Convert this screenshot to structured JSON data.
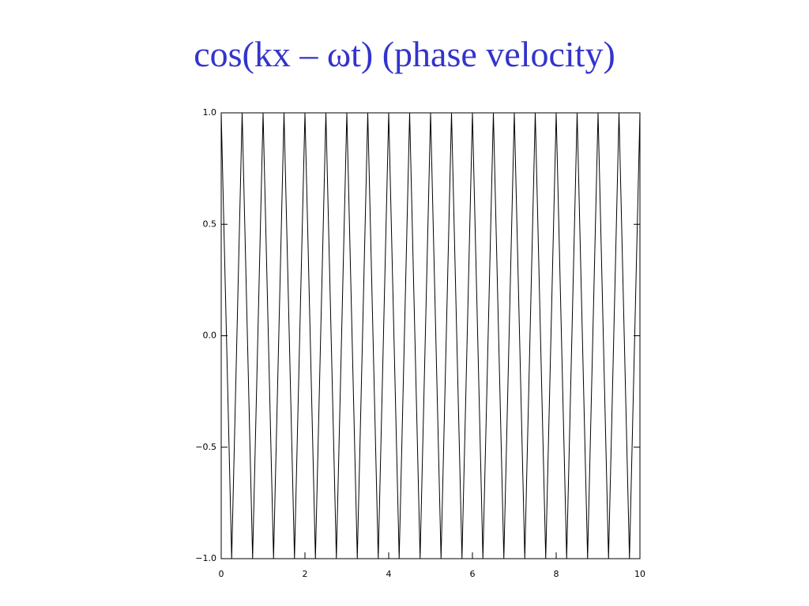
{
  "chart_data": {
    "type": "line",
    "title": "cos(kx – ωt) (phase velocity)",
    "color": "#000000",
    "x": [
      0,
      0.125,
      0.25,
      0.375,
      0.5,
      0.625,
      0.75,
      0.875,
      1,
      1.125,
      1.25,
      1.375,
      1.5,
      1.625,
      1.75,
      1.875,
      2,
      2.125,
      2.25,
      2.375,
      2.5,
      2.625,
      2.75,
      2.875,
      3,
      3.125,
      3.25,
      3.375,
      3.5,
      3.625,
      3.75,
      3.875,
      4,
      4.125,
      4.25,
      4.375,
      4.5,
      4.625,
      4.75,
      4.875,
      5,
      5.125,
      5.25,
      5.375,
      5.5,
      5.625,
      5.75,
      5.875,
      6,
      6.125,
      6.25,
      6.375,
      6.5,
      6.625,
      6.75,
      6.875,
      7,
      7.125,
      7.25,
      7.375,
      7.5,
      7.625,
      7.75,
      7.875,
      8,
      8.125,
      8.25,
      8.375,
      8.5,
      8.625,
      8.75,
      8.875,
      9,
      9.125,
      9.25,
      9.375,
      9.5,
      9.625,
      9.75,
      9.875,
      10
    ],
    "values": [
      1,
      0,
      -1,
      0,
      1,
      0,
      -1,
      0,
      1,
      0,
      -1,
      0,
      1,
      0,
      -1,
      0,
      1,
      0,
      -1,
      0,
      1,
      0,
      -1,
      0,
      1,
      0,
      -1,
      0,
      1,
      0,
      -1,
      0,
      1,
      0,
      -1,
      0,
      1,
      0,
      -1,
      0,
      1,
      0,
      -1,
      0,
      1,
      0,
      -1,
      0,
      1,
      0,
      -1,
      0,
      1,
      0,
      -1,
      0,
      1,
      0,
      -1,
      0,
      1,
      0,
      -1,
      0,
      1,
      0,
      -1,
      0,
      1,
      0,
      -1,
      0,
      1,
      0,
      -1,
      0,
      1,
      0,
      -1,
      0,
      1
    ],
    "xlim": [
      0,
      10
    ],
    "xticks": [
      0,
      2,
      4,
      6,
      8,
      10
    ],
    "ylim": [
      -1,
      1
    ],
    "yticks": [
      {
        "value": -1,
        "label": "−1.0"
      },
      {
        "value": -0.5,
        "label": "−0.5"
      },
      {
        "value": 0,
        "label": "0.0"
      },
      {
        "value": 0.5,
        "label": "0.5"
      },
      {
        "value": 1,
        "label": "1.0"
      }
    ]
  }
}
